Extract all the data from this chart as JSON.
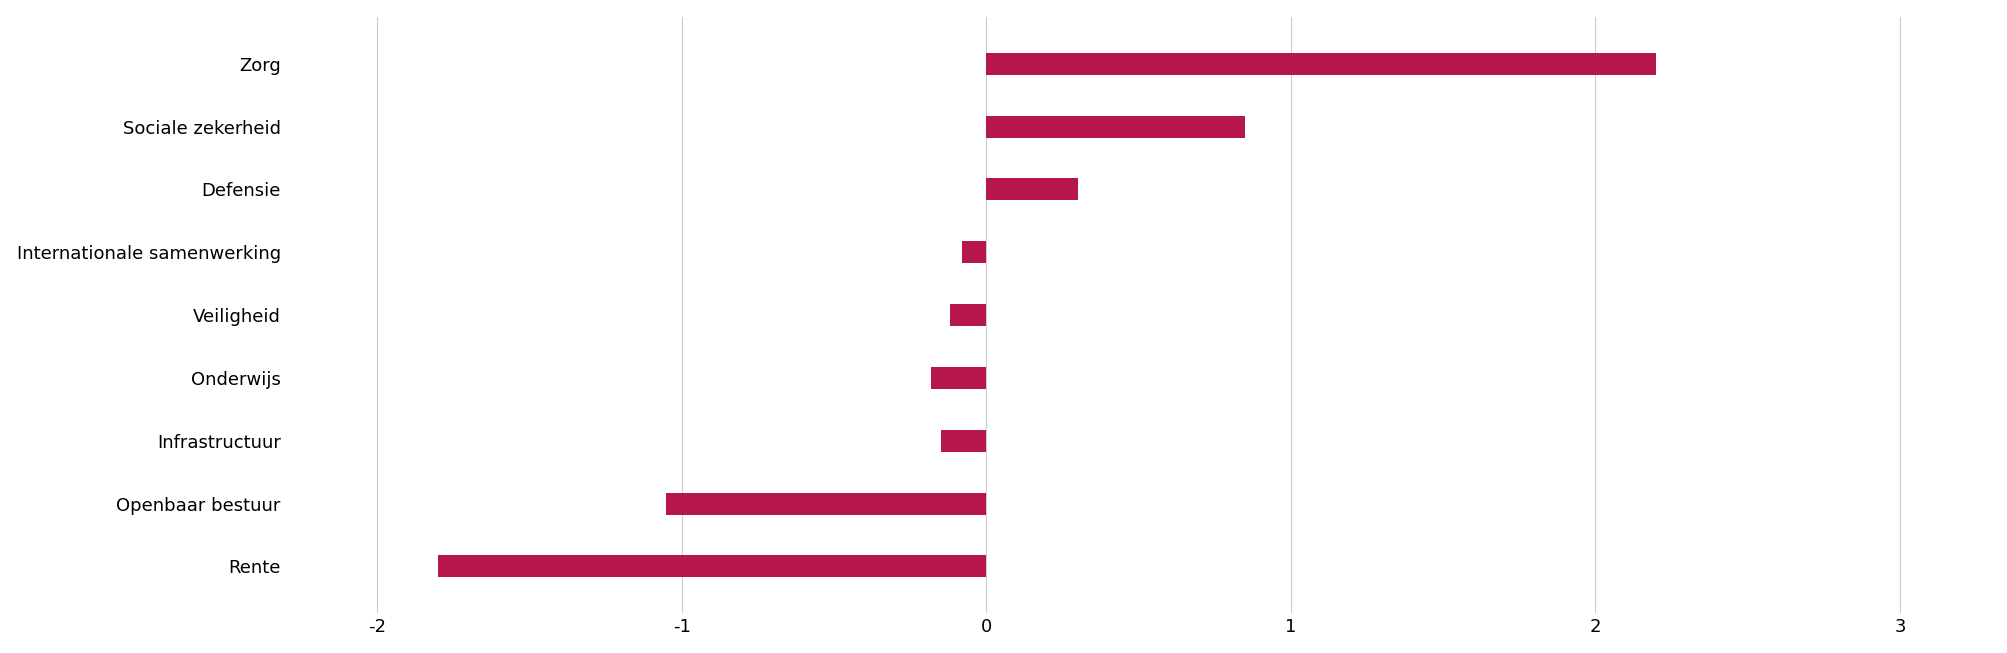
{
  "categories": [
    "Rente",
    "Openbaar bestuur",
    "Infrastructuur",
    "Onderwijs",
    "Veiligheid",
    "Internationale samenwerking",
    "Defensie",
    "Sociale zekerheid",
    "Zorg"
  ],
  "values": [
    -1.8,
    -1.05,
    -0.15,
    -0.18,
    -0.12,
    -0.08,
    0.3,
    0.85,
    2.2
  ],
  "bar_color": "#B5174B",
  "xlim": [
    -2.3,
    3.3
  ],
  "xticks": [
    -2,
    -1,
    0,
    1,
    2,
    3
  ],
  "background_color": "#ffffff",
  "grid_color": "#cccccc",
  "bar_height": 0.35
}
